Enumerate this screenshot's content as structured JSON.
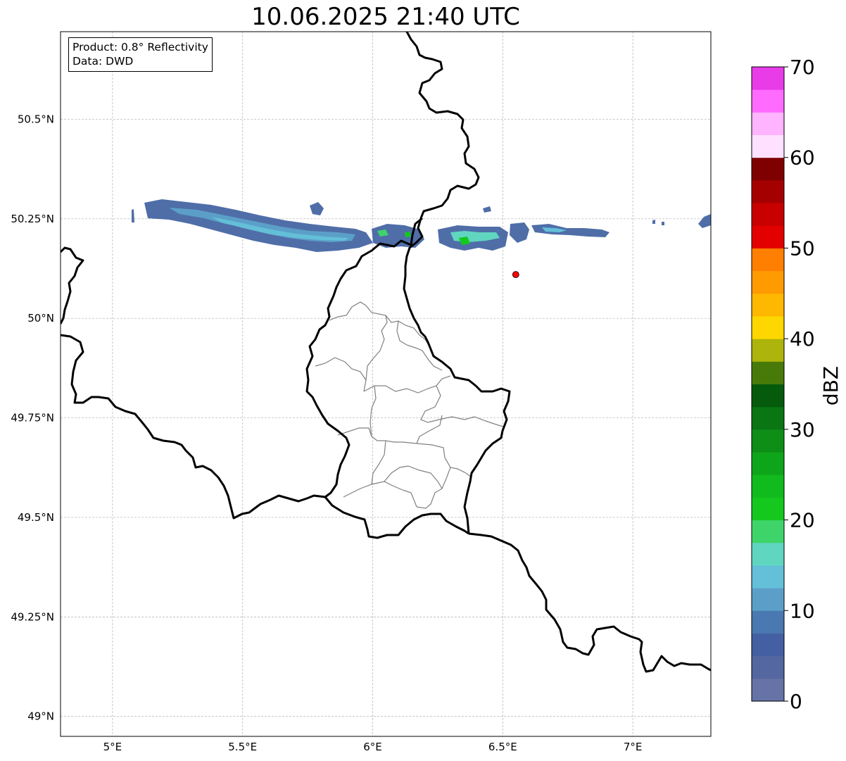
{
  "title": "10.06.2025 21:40 UTC",
  "info": {
    "product": "Product: 0.8° Reflectivity",
    "data": "Data: DWD"
  },
  "map": {
    "lon_range": [
      4.8,
      7.3
    ],
    "lat_range": [
      48.95,
      50.72
    ],
    "lon_ticks": [
      {
        "value": 5.0,
        "label": "5°E"
      },
      {
        "value": 5.5,
        "label": "5.5°E"
      },
      {
        "value": 6.0,
        "label": "6°E"
      },
      {
        "value": 6.5,
        "label": "6.5°E"
      },
      {
        "value": 7.0,
        "label": "7°E"
      }
    ],
    "lat_ticks": [
      {
        "value": 50.5,
        "label": "50.5°N"
      },
      {
        "value": 50.25,
        "label": "50.25°N"
      },
      {
        "value": 50.0,
        "label": "50°N"
      },
      {
        "value": 49.75,
        "label": "49.75°N"
      },
      {
        "value": 49.5,
        "label": "49.5°N"
      },
      {
        "value": 49.25,
        "label": "49.25°N"
      },
      {
        "value": 49.0,
        "label": "49°N"
      }
    ],
    "gridlines": true,
    "radar_site": {
      "lon": 6.55,
      "lat": 50.11,
      "color": "#ff0000"
    },
    "colors": {
      "country_border": "#000000",
      "district_border": "#808080",
      "grid": "#b0b0b0"
    }
  },
  "colorbar": {
    "label": "dBZ",
    "min": 0,
    "max": 70,
    "step": 2.5,
    "ticks": [
      {
        "value": 0,
        "label": "0"
      },
      {
        "value": 10,
        "label": "10"
      },
      {
        "value": 20,
        "label": "20"
      },
      {
        "value": 30,
        "label": "30"
      },
      {
        "value": 40,
        "label": "40"
      },
      {
        "value": 50,
        "label": "50"
      },
      {
        "value": 60,
        "label": "60"
      },
      {
        "value": 70,
        "label": "70"
      }
    ],
    "colors": [
      "#6673a6",
      "#5467a0",
      "#4460a3",
      "#4a78b0",
      "#5b9fc8",
      "#64bfd8",
      "#60d6c0",
      "#3ed46a",
      "#14c81e",
      "#11bb1e",
      "#0fa51b",
      "#0e8e17",
      "#097513",
      "#055a0c",
      "#487a09",
      "#adb40b",
      "#ffd700",
      "#ffb800",
      "#ff9a00",
      "#ff7f00",
      "#e30000",
      "#c80000",
      "#a50000",
      "#7e0000",
      "#ffe1ff",
      "#ffb4ff",
      "#ff6bff",
      "#e83ce8"
    ]
  }
}
